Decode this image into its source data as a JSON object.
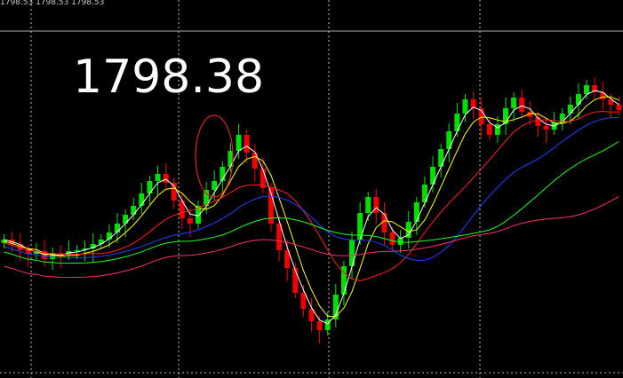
{
  "header": {
    "quote_strip": "1798.53 1798.53 1798.53"
  },
  "price": {
    "current": "1798.38"
  }
}
